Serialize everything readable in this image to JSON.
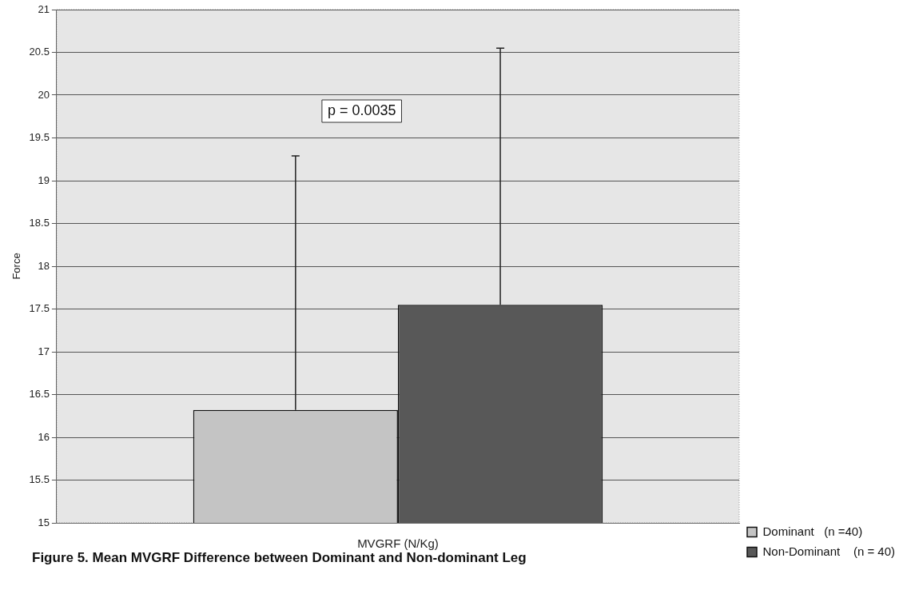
{
  "chart_data": {
    "type": "bar",
    "title": "Figure 5. Mean MVGRF Difference between Dominant and Non-dominant Leg",
    "ylabel": "Force",
    "categories": [
      "MVGRF (N/Kg)"
    ],
    "series": [
      {
        "name": "Dominant   (n =40)",
        "color": "#c4c4c4",
        "values": [
          16.32
        ],
        "errors": [
          [
            16.32,
            19.29
          ]
        ]
      },
      {
        "name": "Non-Dominant    (n = 40)",
        "color": "#585858",
        "values": [
          17.55
        ],
        "errors": [
          [
            17.55,
            20.55
          ]
        ]
      }
    ],
    "ylim": [
      15,
      21
    ],
    "yticks": [
      15,
      15.5,
      16,
      16.5,
      17,
      17.5,
      18,
      18.5,
      19,
      19.5,
      20,
      20.5,
      21
    ],
    "grid": "y",
    "legend": "right bottom",
    "annotations": [
      "p = 0.0035"
    ]
  }
}
